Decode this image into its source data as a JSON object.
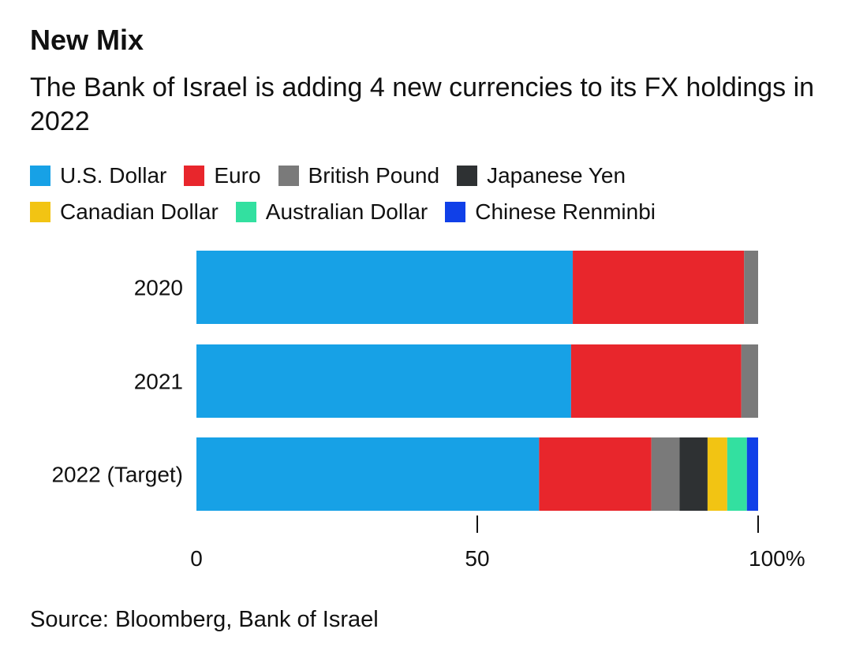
{
  "title": "New Mix",
  "subtitle": "The Bank of Israel is adding 4 new currencies to its FX holdings in 2022",
  "source": "Source: Bloomberg, Bank of Israel",
  "chart_data": {
    "type": "bar",
    "orientation": "horizontal",
    "stacked": true,
    "categories": [
      "2020",
      "2021",
      "2022 (Target)"
    ],
    "series": [
      {
        "name": "U.S. Dollar",
        "color": "#17a1e6",
        "values": [
          67,
          66.7,
          61
        ]
      },
      {
        "name": "Euro",
        "color": "#e8262c",
        "values": [
          30.5,
          30.3,
          20
        ]
      },
      {
        "name": "British Pound",
        "color": "#7a7a7a",
        "values": [
          2.5,
          3,
          5
        ]
      },
      {
        "name": "Japanese Yen",
        "color": "#2e3133",
        "values": [
          0,
          0,
          5
        ]
      },
      {
        "name": "Canadian Dollar",
        "color": "#f2c413",
        "values": [
          0,
          0,
          3.5
        ]
      },
      {
        "name": "Australian Dollar",
        "color": "#33e0a0",
        "values": [
          0,
          0,
          3.5
        ]
      },
      {
        "name": "Chinese Renminbi",
        "color": "#1040e8",
        "values": [
          0,
          0,
          2
        ]
      }
    ],
    "xlim": [
      0,
      100
    ],
    "xticks": [
      0,
      50,
      100
    ],
    "xtick_labels": [
      "0",
      "50",
      "100%"
    ],
    "legend_placement": "top",
    "grid": false
  }
}
